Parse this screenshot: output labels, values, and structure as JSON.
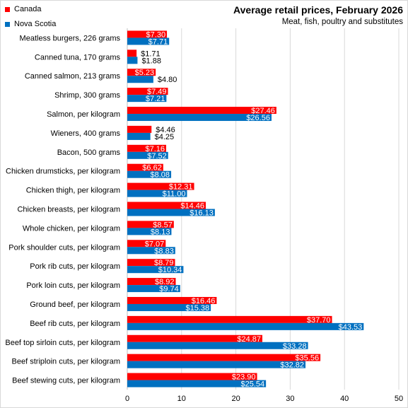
{
  "chart_data": {
    "type": "bar",
    "orientation": "horizontal",
    "title": "Average retail prices, February 2026",
    "subtitle": "Meat,  fish, poultry and substitutes",
    "xlabel": "",
    "ylabel": "",
    "xlim": [
      0,
      50
    ],
    "xticks": [
      0,
      10,
      20,
      30,
      40,
      50
    ],
    "grid": "vertical",
    "legend_position": "top-left",
    "categories": [
      "Meatless burgers, 226 grams",
      "Canned tuna, 170 grams",
      "Canned salmon, 213 grams",
      "Shrimp, 300 grams",
      "Salmon, per kilogram",
      "Wieners, 400 grams",
      "Bacon, 500 grams",
      "Chicken drumsticks, per kilogram",
      "Chicken thigh, per kilogram",
      "Chicken breasts, per kilogram",
      "Whole chicken, per kilogram",
      "Pork shoulder cuts, per kilogram",
      "Pork rib cuts, per kilogram",
      "Pork loin cuts, per kilogram",
      "Ground beef, per kilogram",
      "Beef rib cuts, per kilogram",
      "Beef top sirloin cuts, per kilogram",
      "Beef striploin cuts, per kilogram",
      "Beef stewing cuts, per kilogram"
    ],
    "series": [
      {
        "name": "Canada",
        "color": "#ff0000",
        "values": [
          7.3,
          1.71,
          5.23,
          7.49,
          27.46,
          4.46,
          7.16,
          6.62,
          12.31,
          14.46,
          8.57,
          7.07,
          8.79,
          8.92,
          16.46,
          37.7,
          24.87,
          35.56,
          23.9
        ],
        "labels": [
          "$7.30",
          "$1.71",
          "$5.23",
          "$7.49",
          "$27.46",
          "$4.46",
          "$7.16",
          "$6.62",
          "$12.31",
          "$14.46",
          "$8.57",
          "$7.07",
          "$8.79",
          "$8.92",
          "$16.46",
          "$37.70",
          "$24.87",
          "$35.56",
          "$23.90"
        ]
      },
      {
        "name": "Nova Scotia",
        "color": "#0070c0",
        "values": [
          7.71,
          1.88,
          4.8,
          7.21,
          26.56,
          4.25,
          7.52,
          8.08,
          11.0,
          16.13,
          8.13,
          8.83,
          10.34,
          9.74,
          15.38,
          43.53,
          33.28,
          32.82,
          25.54
        ],
        "labels": [
          "$7.71",
          "$1.88",
          "$4.80",
          "$7.21",
          "$26.56",
          "$4.25",
          "$7.52",
          "$8.08",
          "$11.00",
          "$16.13",
          "$8.13",
          "$8.83",
          "$10.34",
          "$9.74",
          "$15.38",
          "$43.53",
          "$33.28",
          "$32.82",
          "$25.54"
        ]
      }
    ]
  }
}
